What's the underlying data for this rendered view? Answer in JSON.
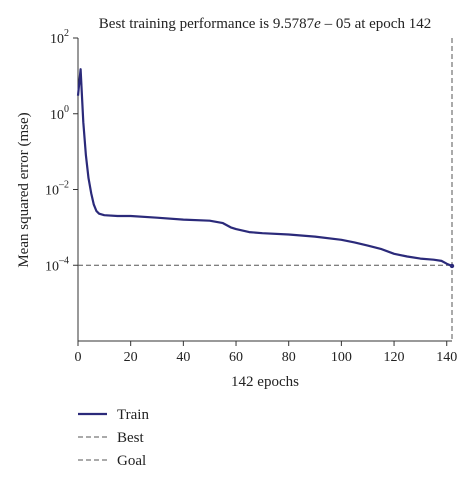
{
  "chart_data": {
    "type": "line",
    "title": "Best training performance is 9.5787e – 05 at epoch 142",
    "title_parts": {
      "prefix": "Best training performance is 9.5787",
      "exp_char": "e",
      "suffix": " – 05 at epoch 142"
    },
    "xlabel": "142 epochs",
    "ylabel": "Mean squared error (mse)",
    "x_scale": "linear",
    "y_scale": "log",
    "xlim": [
      0,
      142
    ],
    "ylim": [
      1e-06,
      100
    ],
    "x_ticks": [
      0,
      20,
      40,
      60,
      80,
      100,
      120,
      140
    ],
    "y_ticks": [
      {
        "value": 100,
        "base": "10",
        "exp": "2"
      },
      {
        "value": 1,
        "base": "10",
        "exp": "0"
      },
      {
        "value": 0.01,
        "base": "10",
        "exp": "–2"
      },
      {
        "value": 0.0001,
        "base": "10",
        "exp": "–4"
      }
    ],
    "grid": false,
    "legend_position": "bottom-left",
    "series": [
      {
        "name": "Train",
        "color": "#2b2a7a",
        "style": "solid",
        "x": [
          0,
          1,
          2,
          3,
          4,
          5,
          6,
          7,
          8,
          10,
          15,
          20,
          30,
          40,
          50,
          55,
          58,
          60,
          65,
          70,
          80,
          90,
          100,
          105,
          110,
          115,
          120,
          125,
          130,
          135,
          138,
          140,
          142
        ],
        "y": [
          3,
          15,
          0.6,
          0.08,
          0.02,
          0.008,
          0.004,
          0.0027,
          0.0023,
          0.0021,
          0.002,
          0.002,
          0.0018,
          0.0016,
          0.0015,
          0.0013,
          0.001,
          0.0009,
          0.00075,
          0.0007,
          0.00065,
          0.00057,
          0.00047,
          0.0004,
          0.00033,
          0.00027,
          0.0002,
          0.00017,
          0.00015,
          0.00014,
          0.00013,
          0.00011,
          9.5787e-05
        ]
      },
      {
        "name": "Best",
        "color": "#555555",
        "style": "dashed",
        "x_value": 142
      },
      {
        "name": "Goal",
        "color": "#555555",
        "style": "dashed",
        "y_value": 0.0001
      }
    ]
  }
}
